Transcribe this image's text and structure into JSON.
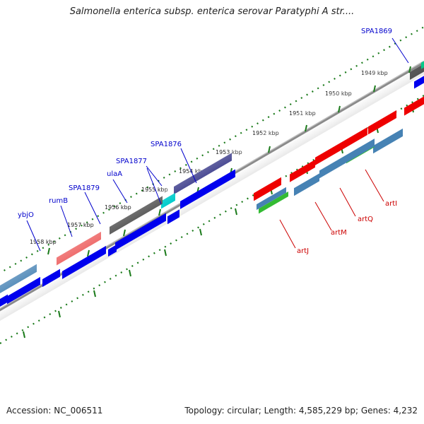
{
  "title": "Salmonella enterica subsp. enterica serovar Paratyphi A str....",
  "footer": {
    "accession": "Accession: NC_006511",
    "summary": "Topology: circular; Length: 4,585,229 bp; Genes: 4,232"
  },
  "ruler_labels": [
    "1949 kbp",
    "1950 kbp",
    "1951 kbp",
    "1952 kbp",
    "1953 kbp",
    "1954 kbp",
    "1955 kbp",
    "1956 kbp",
    "1957 kbp",
    "1958 kbp"
  ],
  "gene_labels_top": [
    "SPA1869",
    "SPA1876",
    "SPA1877",
    "ulaA",
    "SPA1879",
    "rumB",
    "ybjO"
  ],
  "gene_labels_bottom": [
    "artI",
    "artQ",
    "artM",
    "artJ"
  ],
  "colors": {
    "label_blue": "#0000cc",
    "label_red": "#cc0000",
    "ruler_green": "#1a7a1a",
    "backbone": "#8a8a8a",
    "cds_blue": "#0000ee",
    "cds_red": "#ee0000",
    "cds_green": "#33bb33",
    "cds_steel": "#4682b4",
    "cds_gray": "#555555",
    "cds_pink": "#ee6666",
    "cds_cyan": "#00cccc",
    "cds_purple": "#3b3b8a"
  }
}
